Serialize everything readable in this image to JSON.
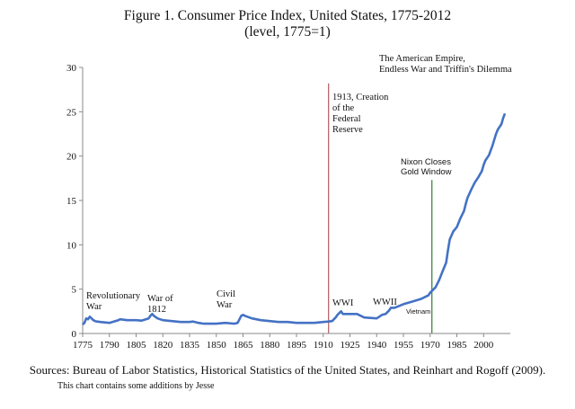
{
  "chart_data": {
    "type": "line",
    "title": "Figure 1. Consumer Price Index, United States, 1775-2012",
    "subtitle": "(level, 1775=1)",
    "xlabel": "",
    "ylabel": "",
    "xlim": [
      1775,
      2015
    ],
    "ylim": [
      0,
      30
    ],
    "x_ticks": [
      1775,
      1790,
      1805,
      1820,
      1835,
      1850,
      1865,
      1880,
      1895,
      1910,
      1925,
      1940,
      1955,
      1970,
      1985,
      2000
    ],
    "y_ticks": [
      0,
      5,
      10,
      15,
      20,
      25,
      30
    ],
    "series": [
      {
        "name": "CPI",
        "color": "#4472c4",
        "x": [
          1775,
          1776,
          1777,
          1778,
          1779,
          1780,
          1781,
          1782,
          1783,
          1785,
          1790,
          1795,
          1796,
          1800,
          1805,
          1808,
          1812,
          1813,
          1814,
          1815,
          1817,
          1820,
          1825,
          1830,
          1835,
          1837,
          1840,
          1843,
          1850,
          1855,
          1860,
          1862,
          1864,
          1865,
          1866,
          1870,
          1875,
          1880,
          1885,
          1890,
          1895,
          1900,
          1905,
          1910,
          1913,
          1915,
          1917,
          1918,
          1920,
          1921,
          1925,
          1929,
          1930,
          1933,
          1940,
          1943,
          1945,
          1947,
          1948,
          1950,
          1955,
          1960,
          1965,
          1969,
          1970,
          1972,
          1973,
          1975,
          1977,
          1979,
          1980,
          1981,
          1983,
          1985,
          1987,
          1989,
          1990,
          1991,
          1993,
          1995,
          1997,
          1999,
          2000,
          2001,
          2003,
          2005,
          2007,
          2008,
          2009,
          2010,
          2011,
          2012
        ],
        "y": [
          1.0,
          1.2,
          1.7,
          1.6,
          1.9,
          1.7,
          1.5,
          1.4,
          1.35,
          1.3,
          1.2,
          1.5,
          1.6,
          1.5,
          1.5,
          1.45,
          1.7,
          2.0,
          2.2,
          2.0,
          1.7,
          1.5,
          1.4,
          1.3,
          1.3,
          1.35,
          1.2,
          1.1,
          1.1,
          1.2,
          1.1,
          1.2,
          2.0,
          2.1,
          2.0,
          1.7,
          1.5,
          1.4,
          1.3,
          1.3,
          1.2,
          1.2,
          1.2,
          1.3,
          1.35,
          1.4,
          1.8,
          2.1,
          2.5,
          2.2,
          2.2,
          2.2,
          2.1,
          1.8,
          1.7,
          2.1,
          2.2,
          2.6,
          2.9,
          2.9,
          3.3,
          3.6,
          3.9,
          4.3,
          4.6,
          5.0,
          5.2,
          6.0,
          7.0,
          8.0,
          9.4,
          10.6,
          11.5,
          12.0,
          13.0,
          13.8,
          14.6,
          15.3,
          16.2,
          17.0,
          17.6,
          18.3,
          19.0,
          19.5,
          20.1,
          21.2,
          22.5,
          23.0,
          23.3,
          23.6,
          24.3,
          24.8
        ]
      }
    ],
    "vertical_lines": [
      {
        "x": 1913,
        "color": "#b05a5f"
      },
      {
        "x": 1971,
        "color": "#2e7d32"
      }
    ],
    "annotations": {
      "revolutionary": [
        "Revolutionary",
        "War"
      ],
      "war1812": [
        "War of",
        "1812"
      ],
      "civil": [
        "Civil",
        "War"
      ],
      "fed": [
        "1913, Creation",
        "of the",
        "Federal",
        "Reserve"
      ],
      "wwi": "WWI",
      "wwii": "WWII",
      "vietnam": "Vietnam",
      "nixon": [
        "Nixon Closes",
        "Gold Window"
      ],
      "empire": [
        "The American Empire,",
        "Endless War and Triffin's Dilemma"
      ]
    }
  },
  "footer": {
    "sources": "Sources: Bureau of Labor Statistics, Historical Statistics of the United States, and Reinhart and Rogoff (2009).",
    "note": "This chart contains some additions by Jesse"
  }
}
